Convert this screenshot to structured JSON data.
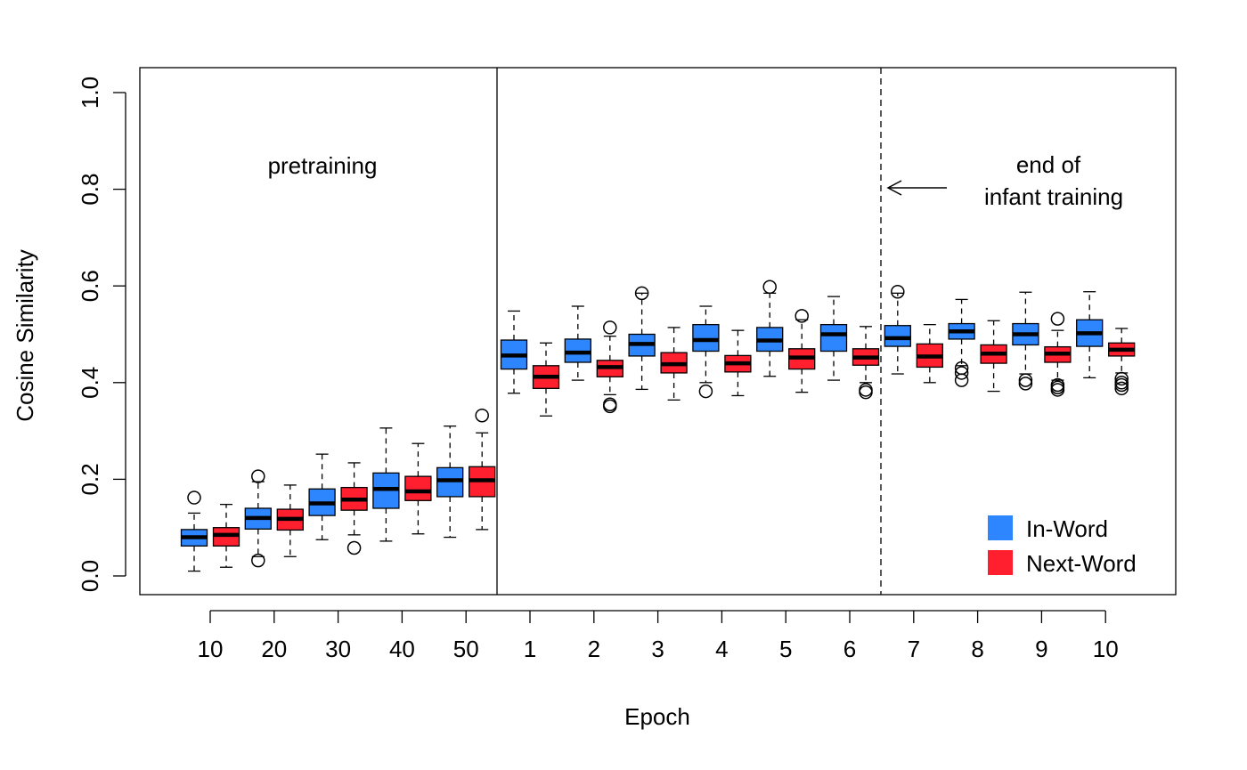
{
  "chart_data": {
    "type": "boxplot",
    "title": "",
    "xlabel": "Epoch",
    "ylabel": "Cosine Similarity",
    "ylim": [
      0.0,
      1.0
    ],
    "yticks": [
      "0.0",
      "0.2",
      "0.4",
      "0.6",
      "0.8",
      "1.0"
    ],
    "categories": [
      "10",
      "20",
      "30",
      "40",
      "50",
      "1",
      "2",
      "3",
      "4",
      "5",
      "6",
      "7",
      "8",
      "9",
      "10"
    ],
    "phases": [
      {
        "label": "pretraining",
        "categories": [
          "10",
          "20",
          "30",
          "40",
          "50"
        ]
      },
      {
        "label": "",
        "categories": [
          "1",
          "2",
          "3",
          "4",
          "5",
          "6",
          "7",
          "8",
          "9",
          "10"
        ]
      }
    ],
    "annotations": {
      "pretraining": "pretraining",
      "end_line1": "end of",
      "end_line2": "infant training",
      "end_after_epoch": "6"
    },
    "legend": {
      "position": "bottom-right",
      "entries": [
        {
          "label": "In-Word",
          "color": "#2e86ff"
        },
        {
          "label": "Next-Word",
          "color": "#ff1f2e"
        }
      ]
    },
    "series": [
      {
        "name": "In-Word",
        "color": "#2e86ff",
        "boxes": [
          {
            "min": 0.01,
            "q1": 0.062,
            "median": 0.08,
            "q3": 0.096,
            "max": 0.13,
            "outliers": [
              0.162
            ]
          },
          {
            "min": 0.04,
            "q1": 0.097,
            "median": 0.12,
            "q3": 0.14,
            "max": 0.195,
            "outliers": [
              0.206,
              0.032
            ]
          },
          {
            "min": 0.075,
            "q1": 0.125,
            "median": 0.15,
            "q3": 0.18,
            "max": 0.252,
            "outliers": []
          },
          {
            "min": 0.072,
            "q1": 0.14,
            "median": 0.18,
            "q3": 0.213,
            "max": 0.306,
            "outliers": []
          },
          {
            "min": 0.08,
            "q1": 0.164,
            "median": 0.198,
            "q3": 0.224,
            "max": 0.31,
            "outliers": []
          },
          {
            "min": 0.378,
            "q1": 0.428,
            "median": 0.456,
            "q3": 0.488,
            "max": 0.548,
            "outliers": []
          },
          {
            "min": 0.405,
            "q1": 0.442,
            "median": 0.462,
            "q3": 0.49,
            "max": 0.558,
            "outliers": []
          },
          {
            "min": 0.386,
            "q1": 0.455,
            "median": 0.48,
            "q3": 0.5,
            "max": 0.585,
            "outliers": [
              0.585
            ]
          },
          {
            "min": 0.4,
            "q1": 0.465,
            "median": 0.488,
            "q3": 0.52,
            "max": 0.558,
            "outliers": [
              0.382
            ]
          },
          {
            "min": 0.413,
            "q1": 0.465,
            "median": 0.487,
            "q3": 0.514,
            "max": 0.585,
            "outliers": [
              0.598
            ]
          },
          {
            "min": 0.405,
            "q1": 0.465,
            "median": 0.5,
            "q3": 0.52,
            "max": 0.578,
            "outliers": []
          },
          {
            "min": 0.418,
            "q1": 0.475,
            "median": 0.492,
            "q3": 0.518,
            "max": 0.585,
            "outliers": [
              0.588
            ]
          },
          {
            "min": 0.435,
            "q1": 0.49,
            "median": 0.506,
            "q3": 0.522,
            "max": 0.572,
            "outliers": [
              0.43,
              0.42,
              0.405
            ]
          },
          {
            "min": 0.418,
            "q1": 0.478,
            "median": 0.5,
            "q3": 0.522,
            "max": 0.587,
            "outliers": [
              0.405,
              0.398
            ]
          },
          {
            "min": 0.41,
            "q1": 0.475,
            "median": 0.502,
            "q3": 0.53,
            "max": 0.588,
            "outliers": []
          }
        ]
      },
      {
        "name": "Next-Word",
        "color": "#ff1f2e",
        "boxes": [
          {
            "min": 0.018,
            "q1": 0.062,
            "median": 0.085,
            "q3": 0.1,
            "max": 0.148,
            "outliers": []
          },
          {
            "min": 0.04,
            "q1": 0.095,
            "median": 0.118,
            "q3": 0.138,
            "max": 0.188,
            "outliers": []
          },
          {
            "min": 0.085,
            "q1": 0.136,
            "median": 0.158,
            "q3": 0.183,
            "max": 0.234,
            "outliers": [
              0.058
            ]
          },
          {
            "min": 0.087,
            "q1": 0.156,
            "median": 0.175,
            "q3": 0.206,
            "max": 0.274,
            "outliers": []
          },
          {
            "min": 0.096,
            "q1": 0.164,
            "median": 0.198,
            "q3": 0.226,
            "max": 0.296,
            "outliers": [
              0.332
            ]
          },
          {
            "min": 0.331,
            "q1": 0.388,
            "median": 0.412,
            "q3": 0.435,
            "max": 0.482,
            "outliers": []
          },
          {
            "min": 0.375,
            "q1": 0.412,
            "median": 0.432,
            "q3": 0.446,
            "max": 0.496,
            "outliers": [
              0.514,
              0.355,
              0.351
            ]
          },
          {
            "min": 0.364,
            "q1": 0.42,
            "median": 0.438,
            "q3": 0.462,
            "max": 0.514,
            "outliers": []
          },
          {
            "min": 0.373,
            "q1": 0.422,
            "median": 0.44,
            "q3": 0.456,
            "max": 0.508,
            "outliers": []
          },
          {
            "min": 0.38,
            "q1": 0.428,
            "median": 0.452,
            "q3": 0.47,
            "max": 0.53,
            "outliers": [
              0.538
            ]
          },
          {
            "min": 0.4,
            "q1": 0.436,
            "median": 0.452,
            "q3": 0.47,
            "max": 0.516,
            "outliers": [
              0.385,
              0.38
            ]
          },
          {
            "min": 0.4,
            "q1": 0.432,
            "median": 0.454,
            "q3": 0.48,
            "max": 0.52,
            "outliers": []
          },
          {
            "min": 0.382,
            "q1": 0.44,
            "median": 0.46,
            "q3": 0.478,
            "max": 0.528,
            "outliers": []
          },
          {
            "min": 0.405,
            "q1": 0.442,
            "median": 0.46,
            "q3": 0.474,
            "max": 0.508,
            "outliers": [
              0.532,
              0.395,
              0.39,
              0.385
            ]
          },
          {
            "min": 0.42,
            "q1": 0.455,
            "median": 0.468,
            "q3": 0.482,
            "max": 0.512,
            "outliers": [
              0.408,
              0.4,
              0.395,
              0.388
            ]
          }
        ]
      }
    ]
  }
}
